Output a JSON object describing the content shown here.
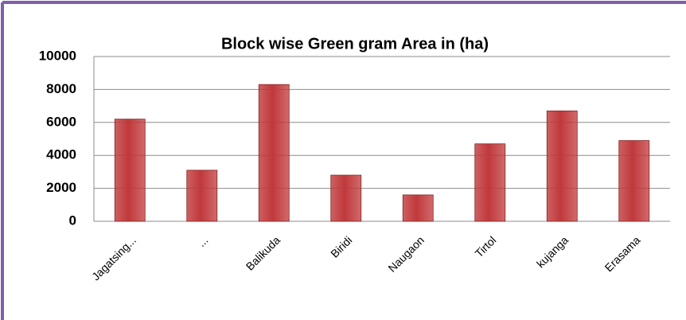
{
  "chart_data": {
    "type": "bar",
    "title": "Block wise Green gram Area in  (ha)",
    "categories": [
      "Jagatsing...",
      "...",
      "Balikuda",
      "Biridi",
      "Naugaon",
      "Tirtol",
      "kujanga",
      "Erasama"
    ],
    "values": [
      6200,
      3100,
      8300,
      2800,
      1600,
      4700,
      6700,
      4900
    ],
    "color": "#c0393b",
    "ylim": [
      0,
      10000
    ],
    "yticks": [
      0,
      2000,
      4000,
      6000,
      8000,
      10000
    ],
    "grid": true
  }
}
